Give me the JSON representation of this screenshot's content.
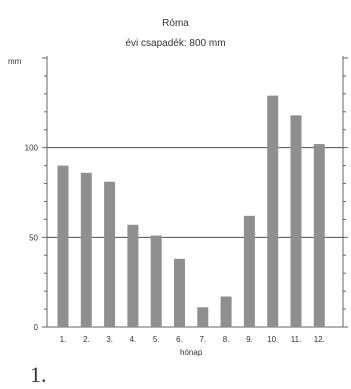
{
  "chart_data": {
    "type": "bar",
    "title": "Róma",
    "subtitle": "évi csapadék: 800 mm",
    "ylabel": "mm",
    "xlabel": "hónap",
    "categories": [
      "1.",
      "2.",
      "3.",
      "4.",
      "5.",
      "6.",
      "7.",
      "8.",
      "9.",
      "10.",
      "11.",
      "12."
    ],
    "values": [
      90,
      86,
      81,
      57,
      51,
      38,
      11,
      17,
      62,
      129,
      118,
      102
    ],
    "ylim": [
      0,
      150
    ],
    "yticks": [
      0,
      50,
      100
    ],
    "reference_lines": [
      50,
      100
    ],
    "grid": false,
    "colors": {
      "bar": "#8f8f8f",
      "axis": "#666666",
      "reference_line": "#4d4d4d"
    }
  },
  "footer_mark": "1."
}
